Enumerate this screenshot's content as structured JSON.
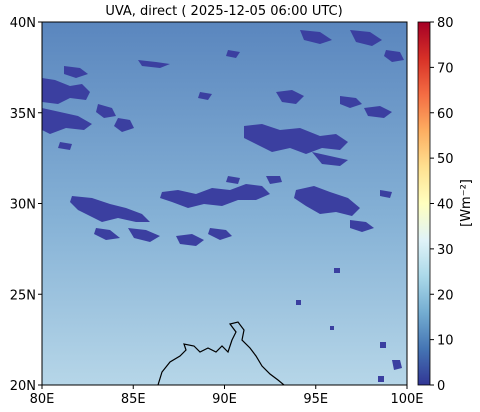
{
  "title": "UVA, direct ( 2025-12-05 06:00 UTC)",
  "map": {
    "lon_range": [
      80,
      100
    ],
    "lat_range": [
      20,
      40
    ],
    "x_ticks": [
      {
        "value": 80,
        "label": "80E"
      },
      {
        "value": 85,
        "label": "85E"
      },
      {
        "value": 90,
        "label": "90E"
      },
      {
        "value": 95,
        "label": "95E"
      },
      {
        "value": 100,
        "label": "100E"
      }
    ],
    "y_ticks": [
      {
        "value": 20,
        "label": "20N"
      },
      {
        "value": 25,
        "label": "25N"
      },
      {
        "value": 30,
        "label": "30N"
      },
      {
        "value": 35,
        "label": "35N"
      },
      {
        "value": 40,
        "label": "40N"
      }
    ],
    "field_gradient": {
      "top_color": "#5a86be",
      "bottom_color": "#b6d6e8"
    },
    "low_value_color": "#3b3fa0",
    "coastline_color": "#000000"
  },
  "colorbar": {
    "label": "[Wm⁻²]",
    "range": [
      0,
      80
    ],
    "ticks": [
      0,
      10,
      20,
      30,
      40,
      50,
      60,
      70,
      80
    ],
    "colormap": "RdYlBu_r",
    "colors": [
      "#313695",
      "#4575b4",
      "#74add1",
      "#abd9e9",
      "#e0f3f8",
      "#ffffbf",
      "#fee090",
      "#fdae61",
      "#f46d43",
      "#d73027",
      "#a50026"
    ]
  }
}
